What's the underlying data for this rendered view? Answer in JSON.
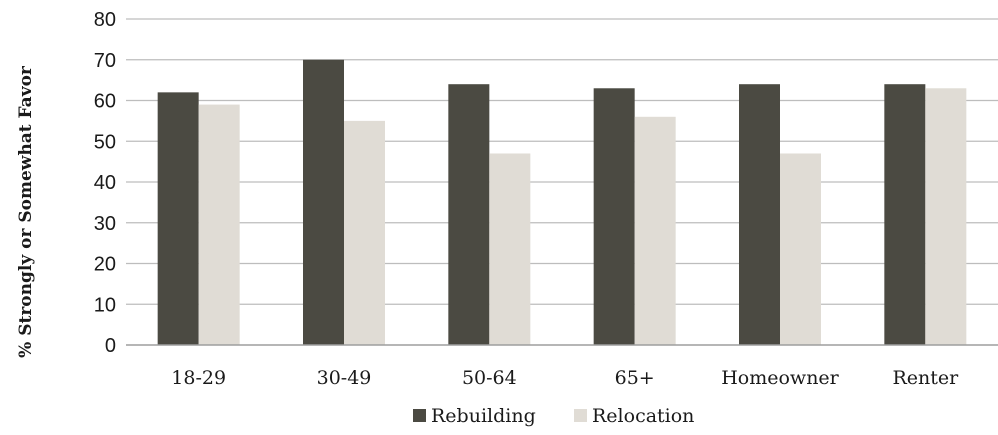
{
  "chart_data": {
    "type": "bar",
    "title": "",
    "xlabel": "",
    "ylabel": "% Strongly or Somewhat Favor",
    "ylim": [
      0,
      80
    ],
    "yticks": [
      0,
      10,
      20,
      30,
      40,
      50,
      60,
      70,
      80
    ],
    "categories": [
      "18-29",
      "30-49",
      "50-64",
      "65+",
      "Homeowner",
      "Renter"
    ],
    "series": [
      {
        "name": "Rebuilding",
        "color": "#4b4a42",
        "values": [
          62,
          70,
          64,
          63,
          64,
          64
        ]
      },
      {
        "name": "Relocation",
        "color": "#e0dcd5",
        "values": [
          59,
          55,
          47,
          56,
          47,
          63
        ]
      }
    ],
    "grid": true,
    "legend": "bottom-center"
  }
}
